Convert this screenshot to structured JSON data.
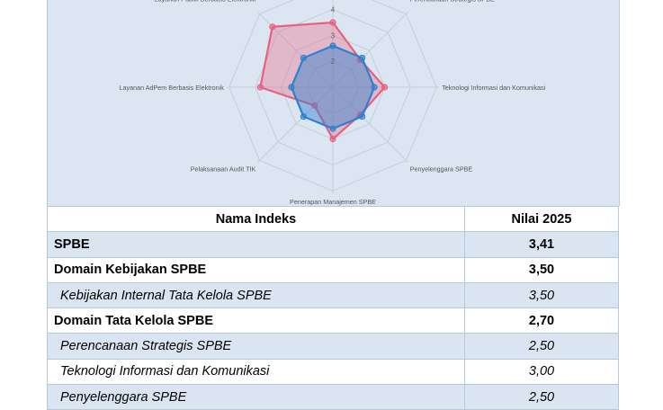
{
  "chart_data": {
    "type": "radar",
    "axes": [
      "",
      "Perencanaan Strategis SPBE",
      "Teknologi Informasi dan Komunikasi",
      "Penyelenggara SPBE",
      "Penerapan Manajemen SPBE",
      "Pelaksanaan Audit TIK",
      "Layanan AdPem Berbasis Elektronik",
      "Layanan Publik Berbasis Elektronik"
    ],
    "scale": {
      "min": 1,
      "max": 5,
      "tick_labels": [
        "2",
        "3",
        "4"
      ]
    },
    "series": [
      {
        "color": "#e8607e",
        "values": [
          3.5,
          2.5,
          3.0,
          2.5,
          3.0,
          2.0,
          3.8,
          4.3
        ]
      },
      {
        "color": "#2f7fd0",
        "values": [
          2.6,
          2.6,
          2.6,
          2.6,
          2.6,
          2.6,
          2.6,
          2.6
        ]
      }
    ]
  },
  "table": {
    "headers": [
      "Nama Indeks",
      "Nilai 2025"
    ],
    "rows": [
      {
        "name": "SPBE",
        "value": "3,41",
        "style": "b"
      },
      {
        "name": "Domain Kebijakan SPBE",
        "value": "3,50",
        "style": "b"
      },
      {
        "name": "Kebijakan Internal Tata Kelola SPBE",
        "value": "3,50",
        "style": "i"
      },
      {
        "name": "Domain Tata Kelola SPBE",
        "value": "2,70",
        "style": "b"
      },
      {
        "name": "Perencanaan Strategis SPBE",
        "value": "2,50",
        "style": "i"
      },
      {
        "name": "Teknologi Informasi dan Komunikasi",
        "value": "3,00",
        "style": "i"
      },
      {
        "name": "Penyelenggara SPBE",
        "value": "2,50",
        "style": "i"
      }
    ]
  }
}
